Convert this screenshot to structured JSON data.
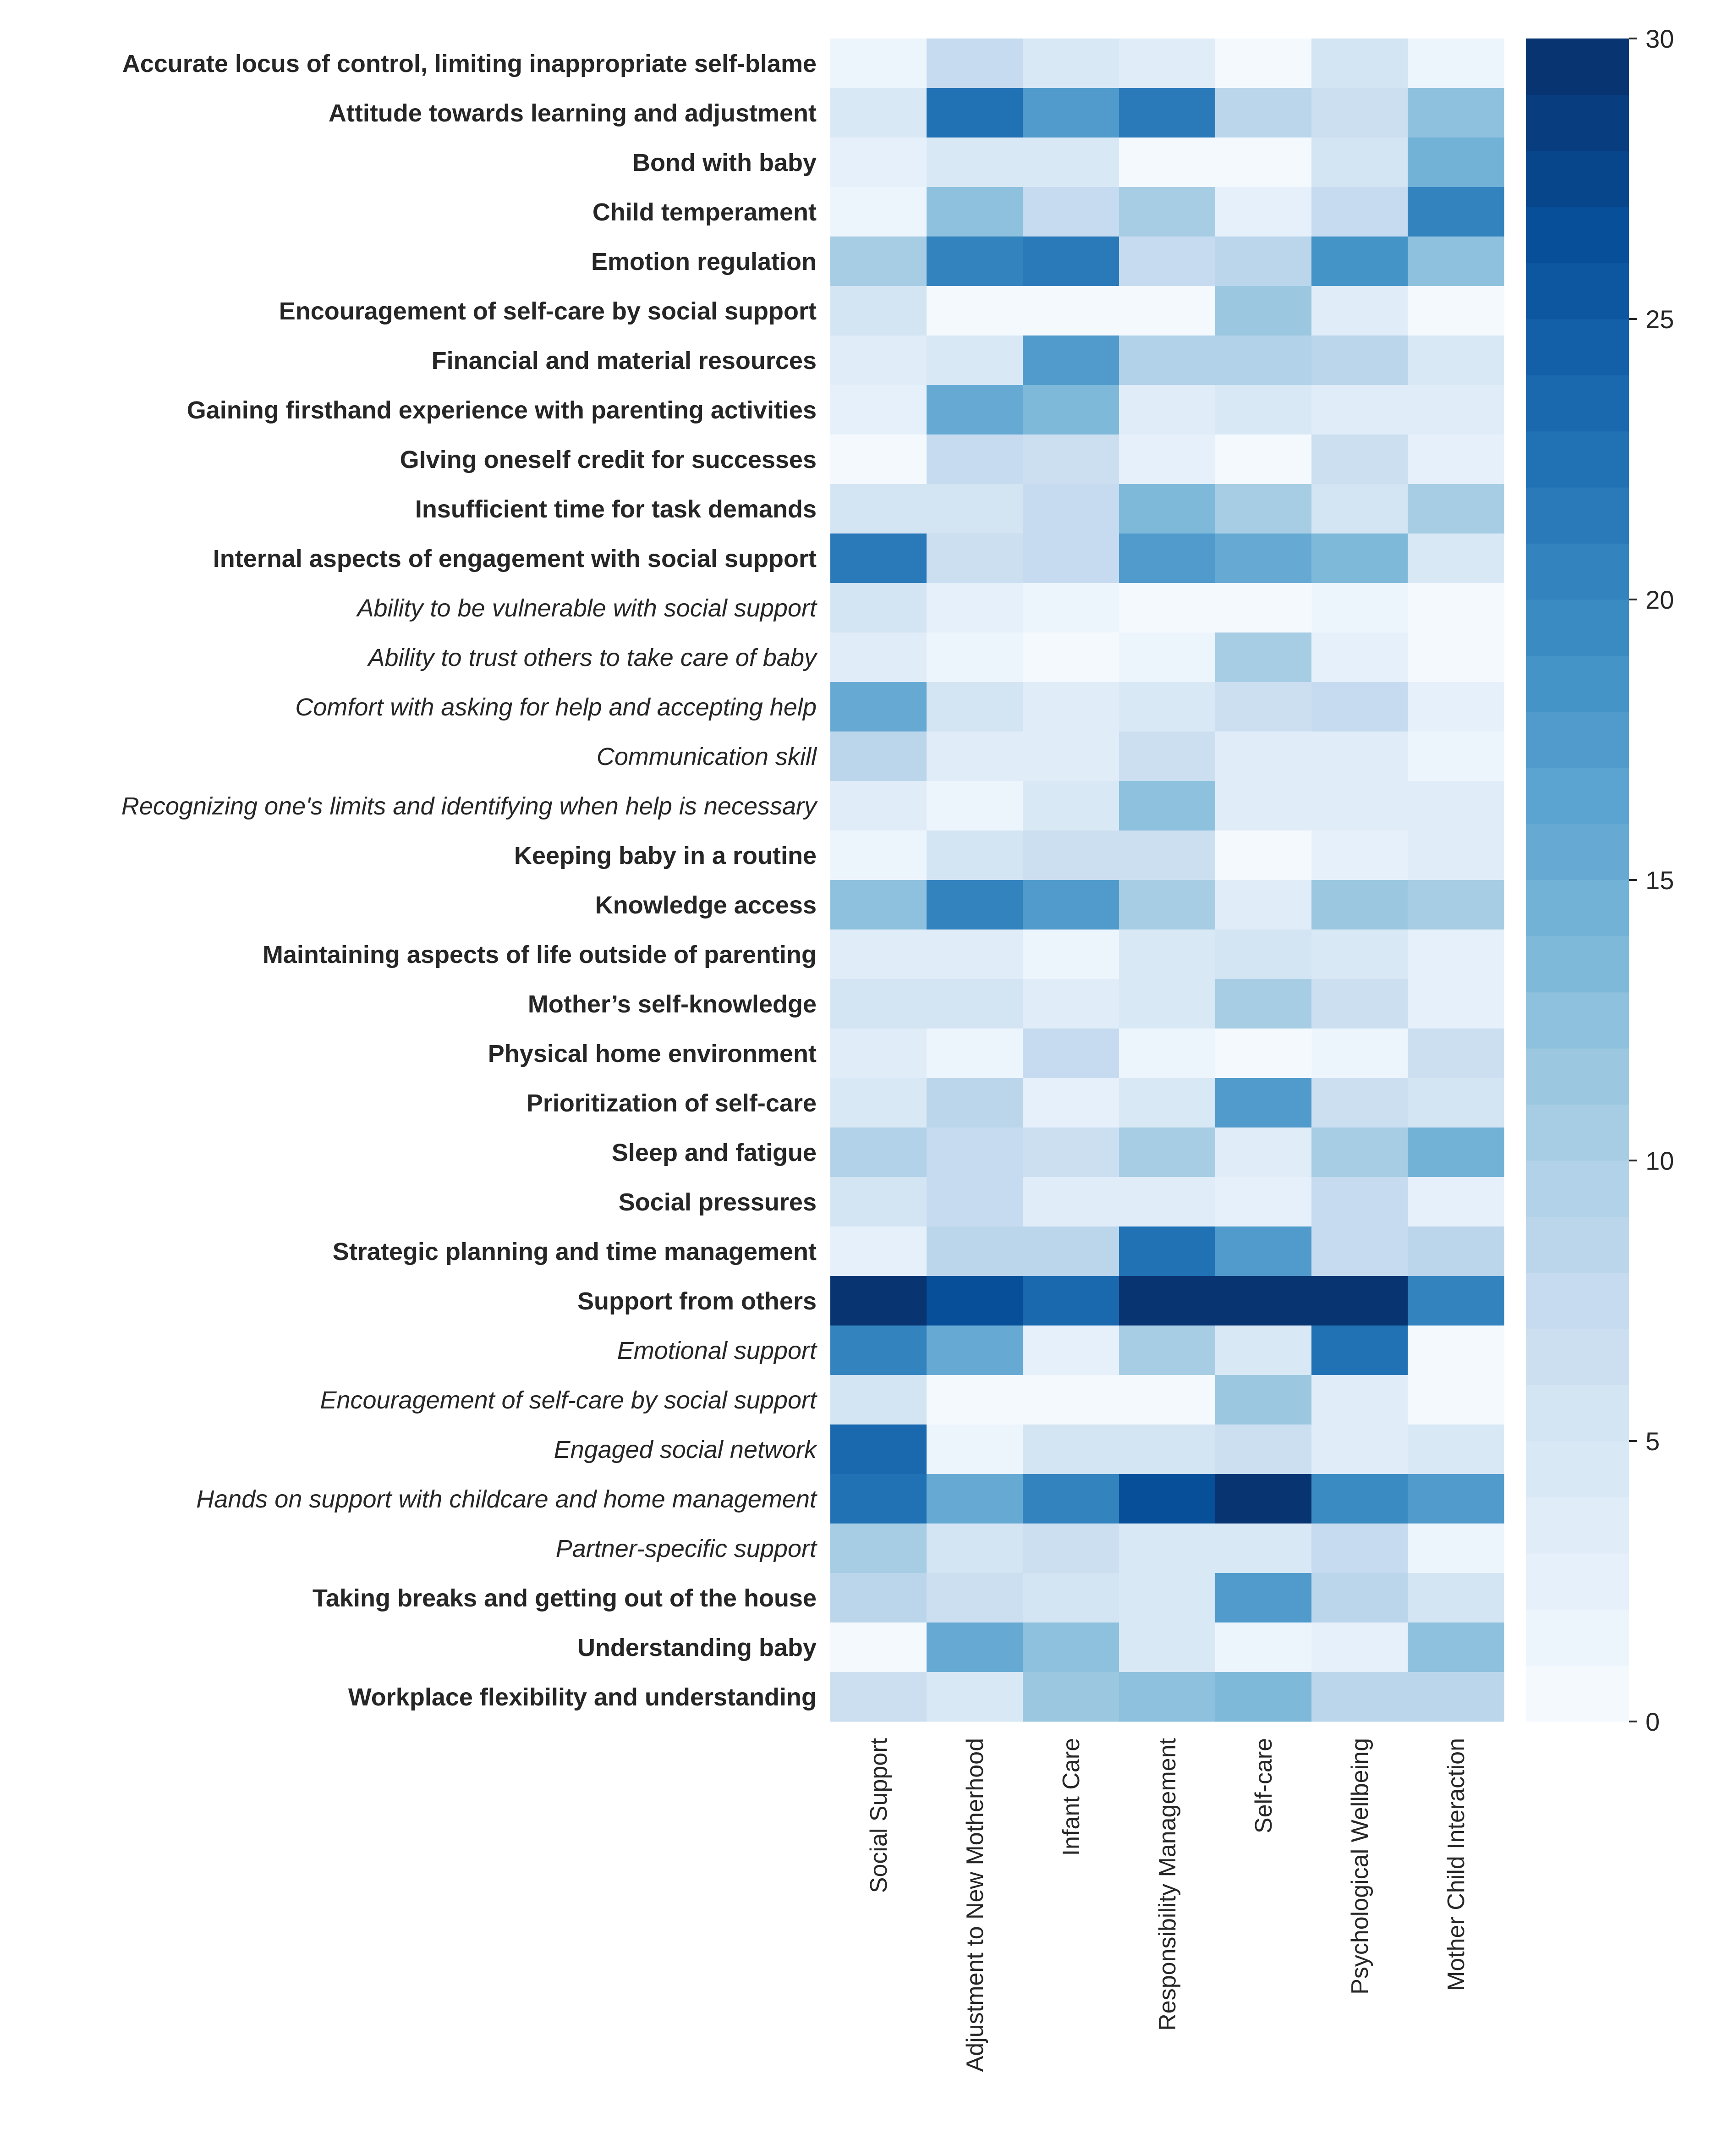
{
  "chart_data": {
    "type": "heatmap",
    "title": "",
    "xlabel": "",
    "ylabel": "",
    "colormap": "Blues",
    "colorbar": {
      "min": 0,
      "max": 30,
      "ticks": [
        0,
        5,
        10,
        15,
        20,
        25,
        30
      ]
    },
    "columns": [
      "Social Support",
      "Adjustment to New Motherhood",
      "Infant Care",
      "Responsibility Management",
      "Self-care",
      "Psychological Wellbeing",
      "Mother Child Interaction"
    ],
    "rows": [
      {
        "label": "Accurate locus of control, limiting inappropriate self-blame",
        "sub": false,
        "values": [
          1,
          7,
          4,
          3,
          0,
          5,
          1
        ]
      },
      {
        "label": "Attitude towards learning and adjustment",
        "sub": false,
        "values": [
          4,
          22,
          17,
          21,
          8,
          6,
          12
        ]
      },
      {
        "label": "Bond with baby",
        "sub": false,
        "values": [
          2,
          4,
          4,
          0,
          0,
          5,
          14
        ]
      },
      {
        "label": "Child temperament",
        "sub": false,
        "values": [
          1,
          12,
          7,
          10,
          2,
          7,
          20
        ]
      },
      {
        "label": "Emotion regulation",
        "sub": false,
        "values": [
          10,
          20,
          21,
          7,
          8,
          18,
          12
        ]
      },
      {
        "label": "Encouragement of self-care by social support",
        "sub": false,
        "values": [
          5,
          0,
          0,
          0,
          11,
          3,
          0
        ]
      },
      {
        "label": "Financial and material resources",
        "sub": false,
        "values": [
          3,
          4,
          17,
          9,
          9,
          8,
          4
        ]
      },
      {
        "label": "Gaining firsthand experience with parenting activities",
        "sub": false,
        "values": [
          2,
          15,
          13,
          3,
          4,
          3,
          3
        ]
      },
      {
        "label": "GIving oneself credit for successes",
        "sub": false,
        "values": [
          0,
          7,
          6,
          2,
          0,
          6,
          2
        ]
      },
      {
        "label": "Insufficient time for task demands",
        "sub": false,
        "values": [
          5,
          5,
          7,
          13,
          10,
          5,
          10
        ]
      },
      {
        "label": "Internal aspects of engagement with social support",
        "sub": false,
        "values": [
          21,
          6,
          7,
          17,
          15,
          13,
          4
        ]
      },
      {
        "label": "Ability to be vulnerable with social support",
        "sub": true,
        "values": [
          5,
          2,
          1,
          0,
          0,
          1,
          0
        ]
      },
      {
        "label": "Ability to trust others to take care of baby",
        "sub": true,
        "values": [
          3,
          1,
          0,
          1,
          10,
          2,
          0
        ]
      },
      {
        "label": "Comfort with asking for help and accepting help",
        "sub": true,
        "values": [
          15,
          5,
          3,
          4,
          6,
          7,
          2
        ]
      },
      {
        "label": "Communication skill",
        "sub": true,
        "values": [
          8,
          3,
          3,
          6,
          3,
          3,
          1
        ]
      },
      {
        "label": "Recognizing one's limits and identifying when help is necessary",
        "sub": true,
        "values": [
          3,
          1,
          4,
          12,
          3,
          3,
          3
        ]
      },
      {
        "label": "Keeping baby in a routine",
        "sub": false,
        "values": [
          1,
          5,
          6,
          6,
          0,
          2,
          3
        ]
      },
      {
        "label": "Knowledge access",
        "sub": false,
        "values": [
          12,
          20,
          17,
          10,
          3,
          11,
          10
        ]
      },
      {
        "label": "Maintaining aspects of life outside of parenting",
        "sub": false,
        "values": [
          3,
          3,
          1,
          4,
          5,
          4,
          2
        ]
      },
      {
        "label": "Mother’s self-knowledge",
        "sub": false,
        "values": [
          5,
          5,
          3,
          4,
          10,
          6,
          2
        ]
      },
      {
        "label": "Physical home environment",
        "sub": false,
        "values": [
          3,
          1,
          7,
          1,
          0,
          1,
          6
        ]
      },
      {
        "label": "Prioritization of self-care",
        "sub": false,
        "values": [
          4,
          8,
          2,
          4,
          17,
          6,
          5
        ]
      },
      {
        "label": "Sleep and fatigue",
        "sub": false,
        "values": [
          9,
          7,
          6,
          10,
          3,
          10,
          14
        ]
      },
      {
        "label": "Social pressures",
        "sub": false,
        "values": [
          5,
          7,
          3,
          3,
          2,
          7,
          2
        ]
      },
      {
        "label": "Strategic planning and time management",
        "sub": false,
        "values": [
          2,
          8,
          8,
          22,
          17,
          7,
          8
        ]
      },
      {
        "label": "Support from others",
        "sub": false,
        "values": [
          30,
          26,
          23,
          30,
          30,
          29,
          20
        ]
      },
      {
        "label": "Emotional support",
        "sub": true,
        "values": [
          20,
          15,
          2,
          10,
          4,
          22,
          0
        ]
      },
      {
        "label": "Encouragement of self-care by social support",
        "sub": true,
        "values": [
          5,
          0,
          0,
          0,
          11,
          3,
          0
        ]
      },
      {
        "label": "Engaged social network",
        "sub": true,
        "values": [
          23,
          1,
          5,
          5,
          6,
          3,
          4
        ]
      },
      {
        "label": "Hands on support with childcare and home management",
        "sub": true,
        "values": [
          22,
          15,
          20,
          26,
          29,
          19,
          17
        ]
      },
      {
        "label": "Partner-specific support",
        "sub": true,
        "values": [
          10,
          5,
          6,
          4,
          4,
          7,
          1
        ]
      },
      {
        "label": "Taking breaks and getting out of the house",
        "sub": false,
        "values": [
          8,
          6,
          5,
          4,
          17,
          8,
          5
        ]
      },
      {
        "label": "Understanding baby",
        "sub": false,
        "values": [
          0,
          15,
          12,
          4,
          1,
          2,
          12
        ]
      },
      {
        "label": "Workplace flexibility and understanding",
        "sub": false,
        "values": [
          6,
          4,
          11,
          12,
          13,
          8,
          8
        ]
      }
    ]
  }
}
